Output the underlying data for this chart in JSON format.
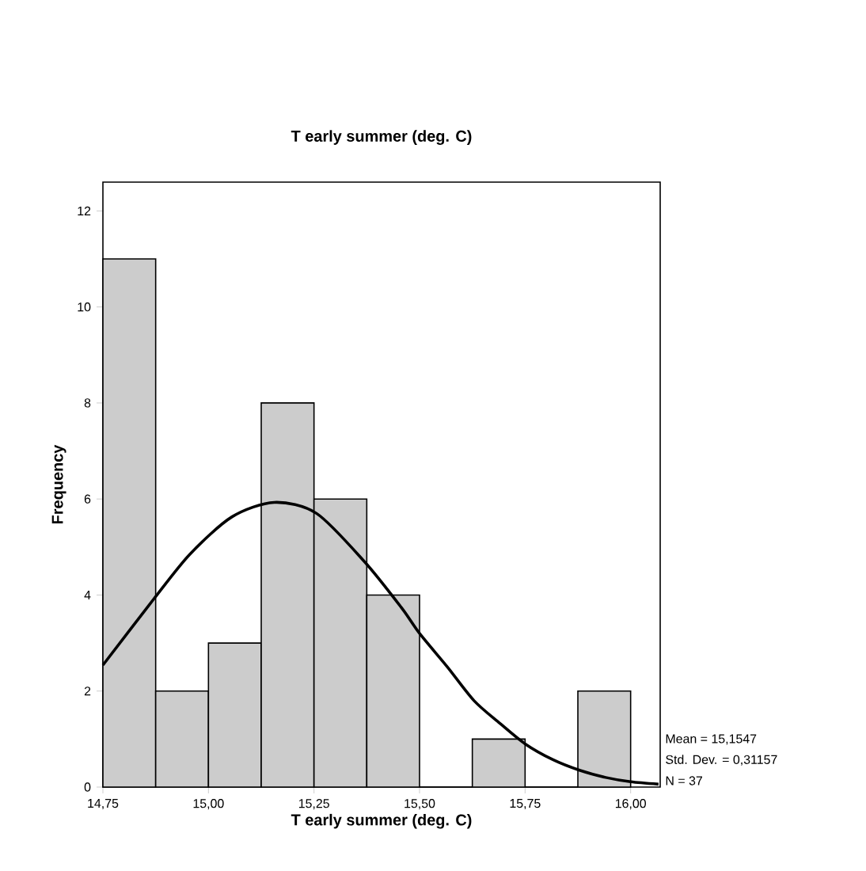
{
  "chart_data": {
    "type": "histogram",
    "title": "T early summer (deg. C)",
    "xlabel": "T early summer (deg. C)",
    "ylabel": "Frequency",
    "bins": [
      14.75,
      14.875,
      15.0,
      15.125,
      15.25,
      15.375,
      15.5,
      15.625,
      15.75,
      15.875,
      16.0
    ],
    "values": [
      11,
      2,
      3,
      8,
      6,
      4,
      0,
      1,
      0,
      2
    ],
    "color": "#cccccc",
    "xlim": [
      14.75,
      16.07
    ],
    "ylim": [
      0,
      12.6
    ],
    "xticks": [
      {
        "value": 14.75,
        "label": "14,75"
      },
      {
        "value": 15.0,
        "label": "15,00"
      },
      {
        "value": 15.25,
        "label": "15,25"
      },
      {
        "value": 15.5,
        "label": "15,50"
      },
      {
        "value": 15.75,
        "label": "15,75"
      },
      {
        "value": 16.0,
        "label": "16,00"
      }
    ],
    "yticks": [
      0,
      2,
      4,
      6,
      8,
      10,
      12
    ],
    "series": [
      {
        "type": "line",
        "color": "#000000",
        "x": [
          14.75,
          14.869,
          14.956,
          15.056,
          15.156,
          15.256,
          15.369,
          15.456,
          15.5,
          15.566,
          15.629,
          15.69,
          15.75,
          15.816,
          15.879,
          15.941,
          16.0,
          16.066
        ],
        "values": [
          2.54,
          3.9,
          4.85,
          5.63,
          5.93,
          5.7,
          4.7,
          3.75,
          3.2,
          2.5,
          1.8,
          1.33,
          0.9,
          0.57,
          0.35,
          0.2,
          0.11,
          0.06
        ]
      }
    ],
    "annotations": [
      "Mean = 15,1547",
      "Std. Dev. = 0,31157",
      "N = 37"
    ]
  }
}
